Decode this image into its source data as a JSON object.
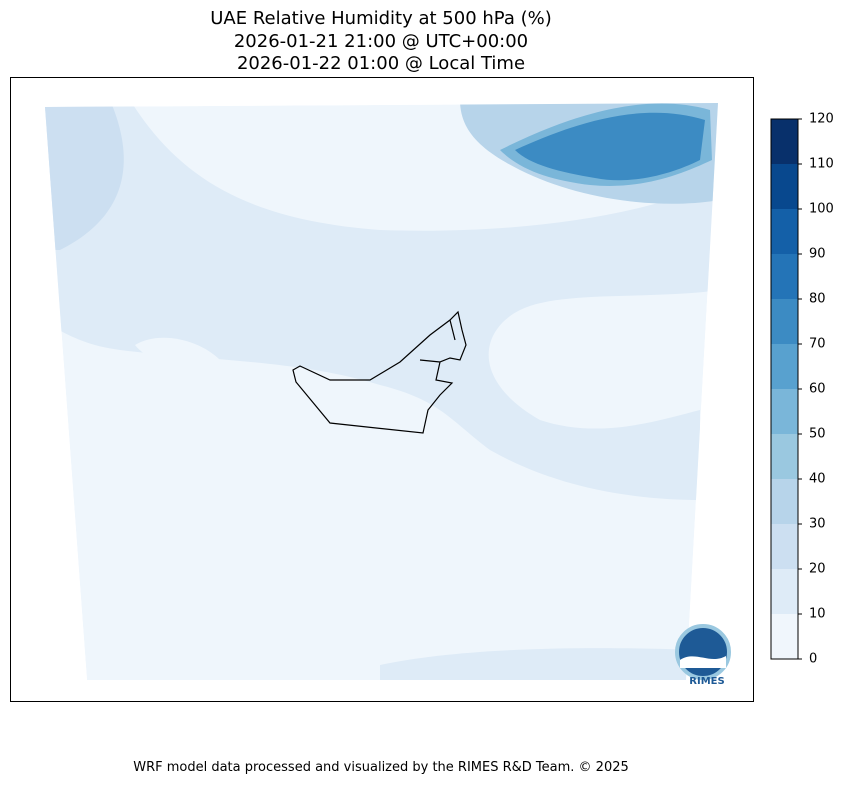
{
  "title": [
    "UAE Relative Humidity at 500 hPa (%)",
    "2026-01-21 21:00 @ UTC+00:00",
    "2026-01-22 01:00 @ Local Time"
  ],
  "colorbar": {
    "ticks": [
      0,
      10,
      20,
      30,
      40,
      50,
      60,
      70,
      80,
      90,
      100,
      110,
      120
    ],
    "colors": [
      "#f0f6fc",
      "#deebf7",
      "#ccdff1",
      "#b7d4ea",
      "#9ac8e0",
      "#7ab6d9",
      "#58a1cf",
      "#3c8bc3",
      "#2474b7",
      "#1460a8",
      "#08488e",
      "#08306b"
    ]
  },
  "logo": "RIMES",
  "footer": "WRF model data processed and visualized by the RIMES R&D Team. © 2025"
}
